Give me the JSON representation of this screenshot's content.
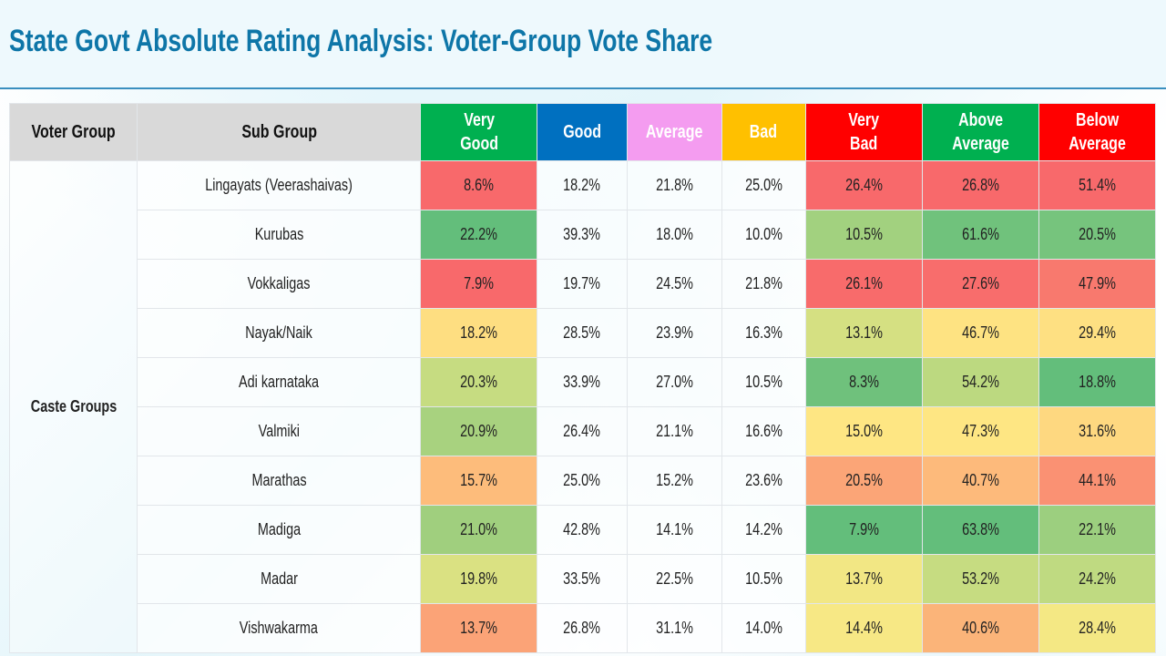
{
  "title": "State Govt Absolute Rating Analysis: Voter-Group Vote Share",
  "header": {
    "voter_group": "Voter Group",
    "sub_group": "Sub Group",
    "columns": [
      {
        "label_lines": [
          "Very",
          "Good"
        ],
        "bg": "#00b050",
        "fg": "#ffffff"
      },
      {
        "label_lines": [
          "Good"
        ],
        "bg": "#0070c0",
        "fg": "#ffffff"
      },
      {
        "label_lines": [
          "Average"
        ],
        "bg": "#f49cf0",
        "fg": "#ffffff"
      },
      {
        "label_lines": [
          "Bad"
        ],
        "bg": "#ffc000",
        "fg": "#ffffff"
      },
      {
        "label_lines": [
          "Very",
          "Bad"
        ],
        "bg": "#ff0000",
        "fg": "#ffffff"
      },
      {
        "label_lines": [
          "Above Average"
        ],
        "bg": "#00b050",
        "fg": "#ffffff"
      },
      {
        "label_lines": [
          "Below Average"
        ],
        "bg": "#ff0000",
        "fg": "#ffffff"
      }
    ]
  },
  "group_label": "Caste Groups",
  "rows": [
    {
      "name": "Lingayats (Veerashaivas)",
      "values": [
        "8.6%",
        "18.2%",
        "21.8%",
        "25.0%",
        "26.4%",
        "26.8%",
        "51.4%"
      ],
      "colors": [
        "#f8696b",
        null,
        null,
        null,
        "#f8696b",
        "#f8696b",
        "#f8696b"
      ]
    },
    {
      "name": "Kurubas",
      "values": [
        "22.2%",
        "39.3%",
        "18.0%",
        "10.0%",
        "10.5%",
        "61.6%",
        "20.5%"
      ],
      "colors": [
        "#63be7b",
        null,
        null,
        null,
        "#a2d17f",
        "#70c27c",
        "#76c47d"
      ]
    },
    {
      "name": "Vokkaligas",
      "values": [
        "7.9%",
        "19.7%",
        "24.5%",
        "21.8%",
        "26.1%",
        "27.6%",
        "47.9%"
      ],
      "colors": [
        "#f8696b",
        null,
        null,
        null,
        "#f86b6b",
        "#f86d6c",
        "#f8796e"
      ]
    },
    {
      "name": "Nayak/Naik",
      "values": [
        "18.2%",
        "28.5%",
        "23.9%",
        "16.3%",
        "13.1%",
        "46.7%",
        "29.4%"
      ],
      "colors": [
        "#fede81",
        null,
        null,
        null,
        "#d5e082",
        "#fee382",
        "#fee082"
      ]
    },
    {
      "name": "Adi karnataka",
      "values": [
        "20.3%",
        "33.9%",
        "27.0%",
        "10.5%",
        "8.3%",
        "54.2%",
        "18.8%"
      ],
      "colors": [
        "#c6dc81",
        null,
        null,
        null,
        "#6fc17c",
        "#bcd980",
        "#63be7b"
      ]
    },
    {
      "name": "Valmiki",
      "values": [
        "20.9%",
        "26.4%",
        "21.1%",
        "16.6%",
        "15.0%",
        "47.3%",
        "31.6%"
      ],
      "colors": [
        "#a8d27f",
        null,
        null,
        null,
        "#fee683",
        "#fee683",
        "#fed880"
      ]
    },
    {
      "name": "Marathas",
      "values": [
        "15.7%",
        "25.0%",
        "15.2%",
        "23.6%",
        "20.5%",
        "40.7%",
        "44.1%"
      ],
      "colors": [
        "#fdbc7b",
        null,
        null,
        null,
        "#fba577",
        "#fdba7b",
        "#fa9173"
      ]
    },
    {
      "name": "Madiga",
      "values": [
        "21.0%",
        "42.8%",
        "14.1%",
        "14.2%",
        "7.9%",
        "63.8%",
        "22.1%"
      ],
      "colors": [
        "#a0cf7e",
        null,
        null,
        null,
        "#63be7b",
        "#63be7b",
        "#9ccf7f"
      ]
    },
    {
      "name": "Madar",
      "values": [
        "19.8%",
        "33.5%",
        "22.5%",
        "10.5%",
        "13.7%",
        "53.2%",
        "24.2%"
      ],
      "colors": [
        "#dae182",
        null,
        null,
        null,
        "#f2e784",
        "#c6dc81",
        "#bfda81"
      ]
    },
    {
      "name": "Vishwakarma",
      "values": [
        "13.7%",
        "26.8%",
        "31.1%",
        "14.0%",
        "14.4%",
        "40.6%",
        "28.4%"
      ],
      "colors": [
        "#fba377",
        null,
        null,
        null,
        "#f7e885",
        "#fbb479",
        "#f4e884"
      ]
    }
  ]
}
